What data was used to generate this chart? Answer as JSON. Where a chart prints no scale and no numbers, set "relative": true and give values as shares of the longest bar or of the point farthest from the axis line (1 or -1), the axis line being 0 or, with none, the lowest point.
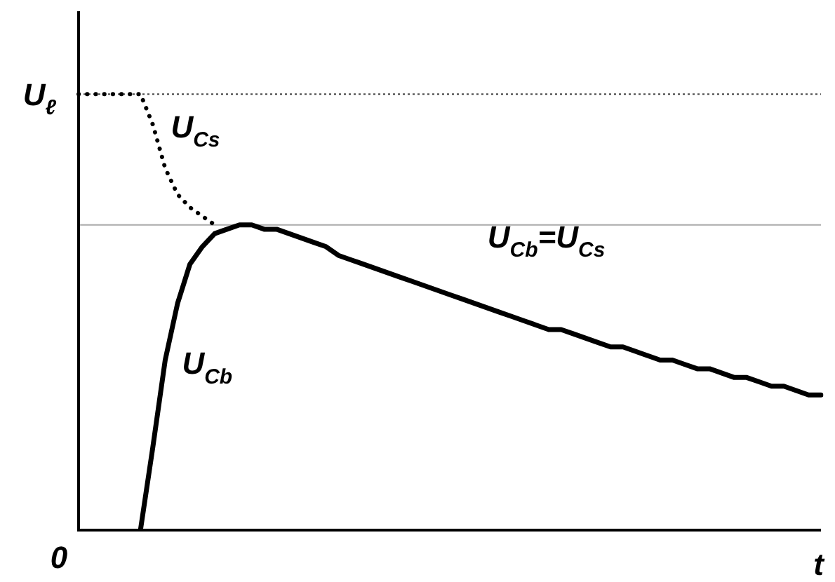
{
  "chart_data": {
    "type": "line",
    "relative": true,
    "xlabel": "t",
    "legend": false,
    "marker": "none",
    "categories": [
      null,
      null,
      null,
      null,
      null,
      null,
      null,
      null,
      null,
      null,
      null,
      null,
      null,
      null,
      null,
      null,
      null,
      null,
      null,
      null,
      null,
      null,
      null,
      null,
      null,
      null,
      null,
      null,
      null,
      null,
      null,
      null,
      null,
      null,
      null,
      null,
      null,
      null,
      null,
      null,
      null,
      null,
      null,
      null,
      null,
      null,
      null,
      null,
      null,
      null,
      null,
      null,
      null,
      null,
      null,
      null,
      null,
      null,
      null,
      null,
      null
    ],
    "annotations": [
      "0",
      "U$_{Cb}$=U$_{Cs}$"
    ],
    "ref_lines": [
      {
        "axis": "y",
        "value": 1,
        "label": "U$_{ℓ}$",
        "color": "#444444",
        "line_style": "dotted"
      },
      {
        "axis": "y",
        "value": 0.7,
        "label": null,
        "color": "#aaaaaa",
        "line_style": "solid"
      }
    ],
    "series": [
      {
        "name": "U$_{Cs}$",
        "color": "#000000",
        "line_style": "dotted",
        "values": [
          1,
          1,
          1,
          1,
          1,
          1,
          0.93,
          0.83,
          0.77,
          0.74,
          0.72,
          0.7,
          null,
          null,
          null,
          null,
          null,
          null,
          null,
          null,
          null,
          null,
          null,
          null,
          null,
          null,
          null,
          null,
          null,
          null,
          null,
          null,
          null,
          null,
          null,
          null,
          null,
          null,
          null,
          null,
          null,
          null,
          null,
          null,
          null,
          null,
          null,
          null,
          null,
          null,
          null,
          null,
          null,
          null,
          null,
          null,
          null,
          null,
          null,
          null,
          null
        ]
      },
      {
        "name": "U$_{Cb}$",
        "color": "#000000",
        "line_style": "solid",
        "values": [
          null,
          null,
          null,
          null,
          null,
          0,
          0.19,
          0.39,
          0.52,
          0.61,
          0.65,
          0.68,
          0.69,
          0.7,
          0.7,
          0.69,
          0.69,
          0.68,
          0.67,
          0.66,
          0.65,
          0.63,
          0.62,
          0.61,
          0.6,
          0.59,
          0.58,
          0.57,
          0.56,
          0.55,
          0.54,
          0.53,
          0.52,
          0.51,
          0.5,
          0.49,
          0.48,
          0.47,
          0.46,
          0.46,
          0.45,
          0.44,
          0.43,
          0.42,
          0.42,
          0.41,
          0.4,
          0.39,
          0.39,
          0.38,
          0.37,
          0.37,
          0.36,
          0.35,
          0.35,
          0.34,
          0.33,
          0.33,
          0.32,
          0.31,
          0.31
        ]
      }
    ]
  }
}
